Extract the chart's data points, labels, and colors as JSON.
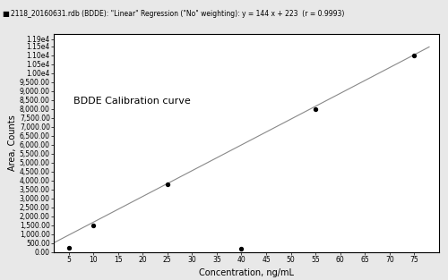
{
  "title": "2118_20160631.rdb (BDDE): \"Linear\" Regression (\"No\" weighting): y = 144 x + 223  (r = 0.9993)",
  "xlabel": "Concentration, ng/mL",
  "ylabel": "Area, Counts",
  "annotation": "BDDE Calibration curve",
  "data_points": [
    [
      5,
      223
    ],
    [
      10,
      1500
    ],
    [
      25,
      3800
    ],
    [
      40,
      200
    ],
    [
      55,
      8000
    ],
    [
      75,
      11000
    ]
  ],
  "regression_slope": 144,
  "regression_intercept": 223,
  "x_line_start": 2,
  "x_line_end": 78,
  "xlim": [
    2,
    80
  ],
  "ylim": [
    0,
    12000
  ],
  "yticks": [
    0,
    500,
    1000,
    1500,
    2000,
    2500,
    3000,
    3500,
    4000,
    4500,
    5000,
    5500,
    6000,
    6500,
    7000,
    7500,
    8000,
    8500,
    9000,
    9500,
    10000,
    10500,
    11000,
    11500,
    11900
  ],
  "xticks": [
    5,
    10,
    15,
    20,
    25,
    30,
    35,
    40,
    45,
    50,
    55,
    60,
    65,
    70,
    75
  ],
  "marker_color": "black",
  "line_color": "#888888",
  "background_color": "#e8e8e8",
  "plot_bg_color": "white",
  "title_fontsize": 5.5,
  "label_fontsize": 7,
  "tick_fontsize": 5.5,
  "annotation_fontsize": 8
}
